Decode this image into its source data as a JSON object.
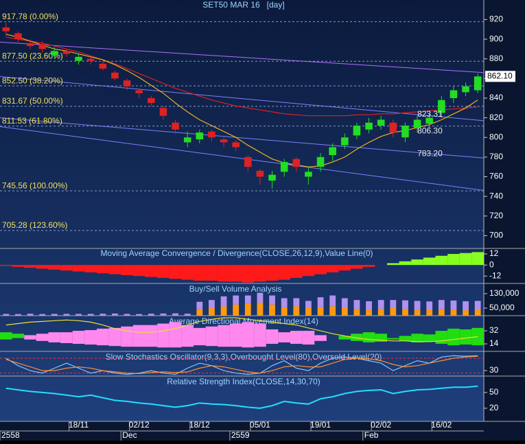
{
  "chart_data": [
    {
      "type": "candlestick",
      "title": "SET50 MAR 16   [day]",
      "categories": [
        null,
        null,
        null,
        null,
        null,
        null,
        "18/11",
        null,
        null,
        null,
        null,
        "02/12",
        null,
        null,
        null,
        null,
        "18/12",
        null,
        null,
        null,
        null,
        "05/01",
        null,
        null,
        null,
        null,
        "19/01",
        null,
        null,
        null,
        null,
        "02/02",
        null,
        null,
        null,
        null,
        "16/02",
        null,
        null,
        null
      ],
      "periods": [
        "2558",
        null,
        null,
        null,
        null,
        null,
        null,
        null,
        null,
        null,
        "Dec",
        null,
        null,
        null,
        null,
        null,
        null,
        null,
        null,
        "2559",
        null,
        null,
        null,
        null,
        null,
        null,
        null,
        null,
        null,
        null,
        "Feb",
        null,
        null,
        null,
        null,
        null,
        null,
        null,
        null,
        null
      ],
      "open": [
        912,
        906,
        896,
        895,
        884,
        888,
        878,
        880,
        875,
        866,
        858,
        848,
        840,
        830,
        815,
        795,
        798,
        806,
        798,
        795,
        780,
        766,
        756,
        765,
        778,
        760,
        770,
        782,
        792,
        802,
        808,
        812,
        815,
        800,
        810,
        814,
        825,
        840,
        846,
        848
      ],
      "high": [
        917,
        908,
        900,
        898,
        892,
        890,
        885,
        882,
        878,
        868,
        860,
        850,
        842,
        832,
        818,
        806,
        808,
        808,
        800,
        797,
        782,
        768,
        766,
        778,
        780,
        770,
        784,
        794,
        804,
        815,
        820,
        822,
        818,
        815,
        822,
        824,
        842,
        852,
        856,
        865
      ],
      "low": [
        903,
        897,
        890,
        886,
        880,
        882,
        874,
        874,
        868,
        858,
        848,
        840,
        832,
        818,
        804,
        790,
        794,
        796,
        790,
        786,
        765,
        752,
        748,
        760,
        765,
        752,
        765,
        776,
        788,
        798,
        804,
        808,
        800,
        795,
        805,
        810,
        820,
        835,
        842,
        845
      ],
      "close": [
        908,
        900,
        893,
        890,
        888,
        885,
        882,
        878,
        870,
        860,
        852,
        845,
        835,
        822,
        808,
        800,
        805,
        800,
        795,
        790,
        770,
        760,
        762,
        775,
        770,
        765,
        780,
        790,
        800,
        812,
        815,
        818,
        805,
        812,
        818,
        820,
        838,
        848,
        852,
        862.1
      ],
      "up_color": "#22dd22",
      "down_color": "#dd2222",
      "overlays": [
        {
          "color": "#e02020",
          "values": [
            902,
            900,
            898,
            896,
            893,
            890,
            887,
            883,
            879,
            875,
            870,
            865,
            860,
            855,
            850,
            846,
            842,
            838,
            835,
            832,
            830,
            828,
            826,
            824,
            823,
            822,
            822,
            822,
            822,
            823,
            823,
            824,
            824,
            825,
            826,
            827,
            828,
            829,
            830,
            831
          ]
        },
        {
          "color": "#f0b020",
          "values": [
            905,
            902,
            898,
            894,
            890,
            888,
            885,
            882,
            879,
            874,
            868,
            861,
            853,
            845,
            835,
            826,
            818,
            812,
            806,
            800,
            792,
            785,
            778,
            774,
            772,
            770,
            771,
            775,
            780,
            788,
            795,
            801,
            805,
            807,
            810,
            813,
            818,
            824,
            830,
            838
          ]
        }
      ],
      "trendlines": [
        {
          "color": "#b070ff",
          "values": [
            897,
            866
          ]
        },
        {
          "color": "#8080ff",
          "values": [
            862,
            817
          ]
        },
        {
          "color": "#8080ff",
          "values": [
            820,
            779
          ]
        },
        {
          "color": "#8080ff",
          "values": [
            811,
            746
          ]
        }
      ],
      "levels": [
        {
          "value": 917.78,
          "label": "917.78 (0.00%)"
        },
        {
          "value": 877.5,
          "label": "877.50 (23.60%)"
        },
        {
          "value": 852.5,
          "label": "852.50 (38.20%)"
        },
        {
          "value": 831.67,
          "label": "831.67 (50.00%)"
        },
        {
          "value": 811.53,
          "label": "811.53 (61.80%)"
        },
        {
          "value": 745.56,
          "label": "745.56 (100.00%)"
        },
        {
          "value": 705.28,
          "label": "705.28 (123.60%)"
        }
      ],
      "annotations": [
        823.31,
        {
          "value": 806.3,
          "label": "806.30"
        },
        {
          "value": 783.2,
          "label": "783.20"
        }
      ],
      "last": {
        "value": 862.1,
        "label": "862.10"
      },
      "ylim": [
        687,
        928
      ],
      "yticks": [
        700,
        720,
        740,
        760,
        780,
        800,
        820,
        840,
        860,
        880,
        900,
        920
      ]
    },
    {
      "type": "area",
      "title": "Moving Average Convergence / Divergence(CLOSE,26,12,9),Value Line(0)",
      "values": [
        -1,
        -2,
        -3,
        -4,
        -5,
        -6,
        -7,
        -8,
        -9,
        -10,
        -11,
        -12,
        -13,
        -14,
        -15,
        -16,
        -17,
        -17,
        -18,
        -18,
        -19,
        -18,
        -17,
        -16,
        -14,
        -12,
        -10,
        -8,
        -6,
        -4,
        -2,
        0,
        2,
        4,
        6,
        8,
        10,
        12,
        13,
        14
      ],
      "up_color": "#88ff22",
      "down_color": "#ff1a1a",
      "ylim": [
        -20,
        18
      ],
      "yticks": [
        12,
        0,
        -12
      ]
    },
    {
      "type": "bar",
      "title": "Buy/Sell Volume Analysis",
      "series": [
        {
          "color": "#ff9a10",
          "values": [
            10000,
            9000,
            10000,
            9000,
            10000,
            9000,
            10000,
            9000,
            10000,
            11000,
            10000,
            9000,
            10000,
            11000,
            12000,
            10000,
            45000,
            50000,
            60000,
            70000,
            75000,
            80000,
            70000,
            55000,
            60000,
            50000,
            55000,
            60000,
            50000,
            45000,
            40000,
            45000,
            50000,
            45000,
            40000,
            42000,
            45000,
            40000,
            38000,
            42000
          ]
        },
        {
          "color": "#b090f0",
          "values": [
            8000,
            8000,
            9000,
            8000,
            8000,
            9000,
            8000,
            9000,
            9000,
            9000,
            8000,
            8000,
            9000,
            9000,
            9000,
            9000,
            40000,
            45000,
            55000,
            50000,
            45000,
            55000,
            50000,
            50000,
            45000,
            40000,
            55000,
            60000,
            55000,
            50000,
            48000,
            50000,
            45000,
            48000,
            50000,
            45000,
            50000,
            52000,
            50000,
            48000
          ]
        }
      ],
      "ylim": [
        8000,
        183000
      ],
      "yticks": [
        {
          "value": 130000,
          "label": "130,000"
        },
        {
          "value": 50000,
          "label": "50,000"
        }
      ]
    },
    {
      "type": "band",
      "title": "Average Directional Movement Index(14)",
      "series": [
        {
          "color": "#22dd11",
          "values": [
            30,
            28,
            20,
            18,
            16,
            15,
            14,
            13,
            12,
            11,
            10,
            10,
            10,
            9,
            9,
            10,
            12,
            11,
            10,
            10,
            9,
            10,
            14,
            16,
            14,
            13,
            18,
            22,
            25,
            28,
            30,
            28,
            22,
            25,
            28,
            27,
            32,
            35,
            34,
            36
          ]
        },
        {
          "color": "#ff88ee",
          "values": [
            20,
            22,
            26,
            28,
            30,
            30,
            32,
            33,
            35,
            36,
            38,
            40,
            40,
            42,
            44,
            40,
            36,
            38,
            40,
            42,
            44,
            42,
            34,
            30,
            32,
            32,
            26,
            22,
            20,
            18,
            16,
            17,
            20,
            18,
            16,
            17,
            14,
            12,
            13,
            12
          ]
        },
        {
          "color": "#f0e030",
          "values": [
            40,
            42,
            44,
            45,
            46,
            47,
            46,
            44,
            40,
            35,
            32,
            30,
            30,
            32,
            35,
            40,
            45,
            48,
            50,
            50,
            48,
            46,
            44,
            42,
            40,
            36,
            32,
            28,
            25,
            22,
            20,
            19,
            18,
            18,
            17,
            17,
            18,
            20,
            22,
            24
          ]
        }
      ],
      "ylim": [
        3.6,
        52
      ],
      "yticks": [
        32,
        14
      ]
    },
    {
      "type": "line",
      "title": "Slow Stochastics Oscillator(9,3,3),Overbought Level(80),Oversold Level(20)",
      "series": [
        {
          "color": "#80c8ff",
          "values": [
            80,
            50,
            30,
            20,
            40,
            60,
            40,
            20,
            30,
            20,
            15,
            20,
            30,
            20,
            15,
            40,
            60,
            50,
            30,
            20,
            15,
            20,
            50,
            70,
            40,
            30,
            60,
            80,
            85,
            80,
            70,
            60,
            30,
            50,
            70,
            60,
            85,
            90,
            88,
            90
          ]
        },
        {
          "color": "#ff9030",
          "values": [
            75,
            60,
            45,
            30,
            30,
            40,
            45,
            40,
            30,
            25,
            20,
            18,
            22,
            25,
            22,
            25,
            40,
            50,
            45,
            35,
            25,
            20,
            30,
            45,
            50,
            45,
            45,
            60,
            75,
            80,
            78,
            70,
            55,
            45,
            50,
            60,
            70,
            80,
            85,
            88
          ]
        }
      ],
      "levels": [
        80,
        20
      ],
      "level_color": "#ff3030",
      "ylim": [
        8,
        105
      ],
      "yticks": [
        30
      ]
    },
    {
      "type": "line",
      "title": "Relative Strength Index(CLOSE,14,30,70)",
      "series": [
        {
          "color": "#20e0ff",
          "values": [
            58,
            55,
            52,
            50,
            48,
            45,
            42,
            45,
            40,
            35,
            33,
            30,
            28,
            25,
            22,
            25,
            30,
            28,
            27,
            25,
            22,
            20,
            25,
            33,
            30,
            28,
            38,
            42,
            48,
            52,
            54,
            55,
            48,
            52,
            55,
            56,
            58,
            60,
            60,
            62
          ]
        }
      ],
      "ylim": [
        -5,
        80
      ],
      "yticks": [
        50,
        20
      ]
    }
  ]
}
